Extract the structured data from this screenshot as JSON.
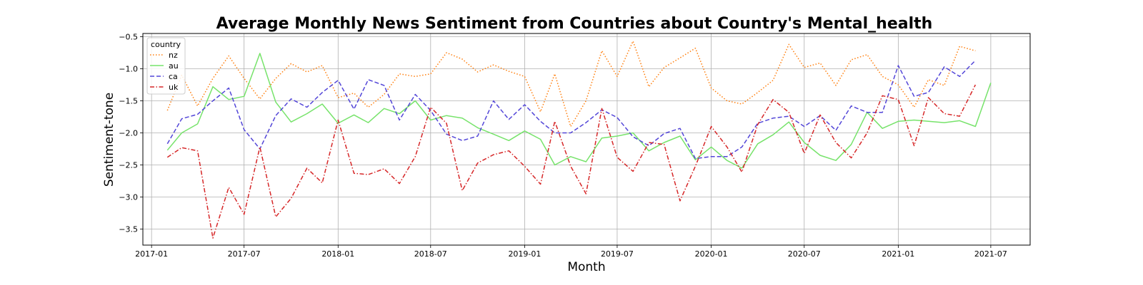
{
  "chart_data": {
    "type": "line",
    "title": "Average Monthly News Sentiment from Countries about Country's Mental_health",
    "xlabel": "Month",
    "ylabel": "Sentiment-tone",
    "x_start": "2017-02",
    "x": [
      "2017-02",
      "2017-03",
      "2017-04",
      "2017-05",
      "2017-06",
      "2017-07",
      "2017-08",
      "2017-09",
      "2017-10",
      "2017-11",
      "2017-12",
      "2018-01",
      "2018-02",
      "2018-03",
      "2018-04",
      "2018-05",
      "2018-06",
      "2018-07",
      "2018-08",
      "2018-09",
      "2018-10",
      "2018-11",
      "2018-12",
      "2019-01",
      "2019-02",
      "2019-03",
      "2019-04",
      "2019-05",
      "2019-06",
      "2019-07",
      "2019-08",
      "2019-09",
      "2019-10",
      "2019-11",
      "2019-12",
      "2020-01",
      "2020-02",
      "2020-03",
      "2020-04",
      "2020-05",
      "2020-06",
      "2020-07",
      "2020-08",
      "2020-09",
      "2020-10",
      "2020-11",
      "2020-12",
      "2021-01",
      "2021-02",
      "2021-03",
      "2021-04",
      "2021-05",
      "2021-06",
      "2021-07"
    ],
    "xlim": [
      "2016-12-15",
      "2021-09-16"
    ],
    "ylim": [
      -3.75,
      -0.45
    ],
    "xticks": [
      "2017-01",
      "2017-07",
      "2018-01",
      "2018-07",
      "2019-01",
      "2019-07",
      "2020-01",
      "2020-07",
      "2021-01",
      "2021-07"
    ],
    "yticks": [
      "-0.5",
      "-1.0",
      "-1.5",
      "-2.0",
      "-2.5",
      "-3.0",
      "-3.5"
    ],
    "grid": true,
    "legend": {
      "title": "country",
      "position": "top-left"
    },
    "series": [
      {
        "name": "nz",
        "color": "#ff7f0e",
        "dash": "dotted",
        "values": [
          -1.65,
          -1.1,
          -1.58,
          -1.15,
          -0.8,
          -1.15,
          -1.47,
          -1.15,
          -0.92,
          -1.05,
          -0.95,
          -1.45,
          -1.38,
          -1.6,
          -1.4,
          -1.08,
          -1.12,
          -1.08,
          -0.75,
          -0.85,
          -1.05,
          -0.94,
          -1.04,
          -1.12,
          -1.67,
          -1.08,
          -1.9,
          -1.5,
          -0.72,
          -1.12,
          -0.57,
          -1.28,
          -0.98,
          -0.83,
          -0.68,
          -1.3,
          -1.5,
          -1.55,
          -1.37,
          -1.18,
          -0.62,
          -0.98,
          -0.91,
          -1.26,
          -0.86,
          -0.78,
          -1.12,
          -1.25,
          -1.6,
          -1.17,
          -1.26,
          -0.65,
          -0.72,
          null
        ]
      },
      {
        "name": "au",
        "color": "#77e36b",
        "dash": "solid",
        "values": [
          -2.27,
          -2.0,
          -1.86,
          -1.28,
          -1.48,
          -1.43,
          -0.76,
          -1.52,
          -1.83,
          -1.7,
          -1.55,
          -1.85,
          -1.72,
          -1.84,
          -1.62,
          -1.7,
          -1.5,
          -1.8,
          -1.73,
          -1.77,
          -1.92,
          -2.02,
          -2.12,
          -1.97,
          -2.1,
          -2.5,
          -2.37,
          -2.45,
          -2.08,
          -2.05,
          -2.0,
          -2.28,
          -2.15,
          -2.05,
          -2.42,
          -2.22,
          -2.43,
          -2.55,
          -2.17,
          -2.03,
          -1.83,
          -2.15,
          -2.35,
          -2.43,
          -2.18,
          -1.68,
          -1.93,
          -1.82,
          -1.8,
          -1.82,
          -1.84,
          -1.81,
          -1.9,
          -1.22
        ]
      },
      {
        "name": "ca",
        "color": "#5346d8",
        "dash": "dashed",
        "values": [
          -2.17,
          -1.78,
          -1.71,
          -1.5,
          -1.3,
          -1.95,
          -2.25,
          -1.73,
          -1.47,
          -1.6,
          -1.37,
          -1.18,
          -1.63,
          -1.17,
          -1.26,
          -1.8,
          -1.4,
          -1.65,
          -2.02,
          -2.12,
          -2.05,
          -1.5,
          -1.79,
          -1.56,
          -1.82,
          -2.0,
          -2.0,
          -1.84,
          -1.64,
          -1.76,
          -2.06,
          -2.2,
          -2.01,
          -1.93,
          -2.4,
          -2.37,
          -2.37,
          -2.22,
          -1.85,
          -1.77,
          -1.74,
          -1.9,
          -1.73,
          -1.96,
          -1.58,
          -1.68,
          -1.68,
          -0.95,
          -1.43,
          -1.37,
          -0.97,
          -1.12,
          -0.87,
          null
        ]
      },
      {
        "name": "uk",
        "color": "#d62728",
        "dash": "dashdot",
        "values": [
          -2.38,
          -2.23,
          -2.28,
          -3.64,
          -2.85,
          -3.27,
          -2.22,
          -3.31,
          -3.02,
          -2.55,
          -2.78,
          -1.8,
          -2.63,
          -2.65,
          -2.56,
          -2.79,
          -2.37,
          -1.6,
          -1.85,
          -2.9,
          -2.47,
          -2.34,
          -2.28,
          -2.52,
          -2.8,
          -1.82,
          -2.52,
          -2.95,
          -1.62,
          -2.38,
          -2.6,
          -2.15,
          -2.18,
          -3.06,
          -2.52,
          -1.9,
          -2.22,
          -2.61,
          -1.87,
          -1.48,
          -1.68,
          -2.32,
          -1.72,
          -2.15,
          -2.39,
          -2.0,
          -1.42,
          -1.48,
          -2.2,
          -1.45,
          -1.7,
          -1.74,
          -1.25,
          null
        ]
      }
    ]
  }
}
